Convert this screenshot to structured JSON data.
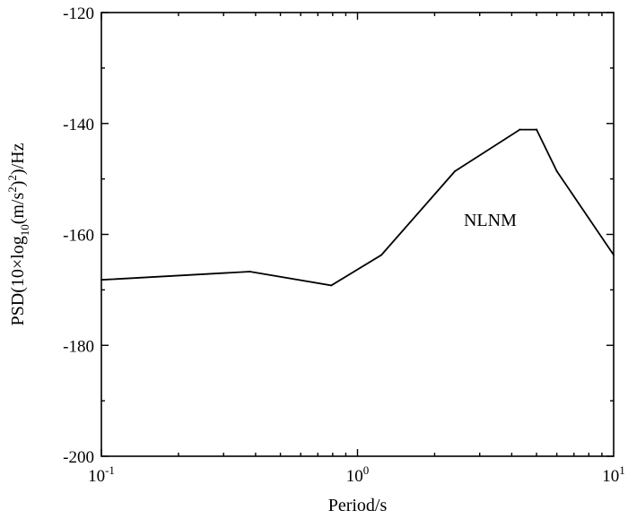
{
  "chart_data": {
    "type": "line",
    "title": "",
    "xlabel": "Period/s",
    "ylabel_parts": {
      "a": "PSD(10×log",
      "sub": "10",
      "b": "(m/s",
      "sup": "2",
      "c": ")",
      "sup2": "2",
      "d": ")/Hz"
    },
    "x_scale": "log",
    "xlim": [
      0.1,
      10
    ],
    "ylim": [
      -200,
      -120
    ],
    "x_ticks": [
      {
        "value": 0.1,
        "base": "10",
        "exp": "-1"
      },
      {
        "value": 1,
        "base": "10",
        "exp": "0"
      },
      {
        "value": 10,
        "base": "10",
        "exp": "1"
      }
    ],
    "y_ticks": [
      -200,
      -180,
      -160,
      -140,
      -120
    ],
    "grid": false,
    "annotation": {
      "text": "NLNM",
      "x": 2.6,
      "y": -158.5
    },
    "series": [
      {
        "x": [
          0.1,
          0.38,
          0.79,
          1.24,
          2.4,
          4.3,
          5.0,
          6.0,
          10.0
        ],
        "y": [
          -168.2,
          -166.7,
          -169.2,
          -163.7,
          -148.6,
          -141.1,
          -141.1,
          -148.6,
          -163.7
        ]
      }
    ]
  }
}
